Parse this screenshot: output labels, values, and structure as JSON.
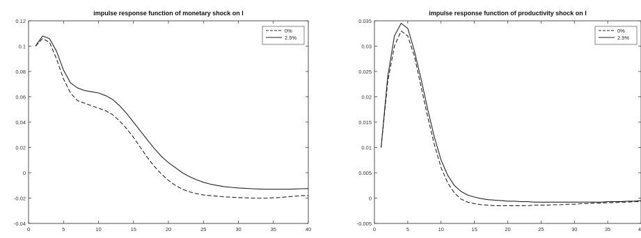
{
  "chart_data": [
    {
      "type": "line",
      "title": "impulse response function of monetary shock on I",
      "xlabel": "",
      "ylabel": "",
      "xlim": [
        0,
        40
      ],
      "ylim": [
        -0.04,
        0.12
      ],
      "xticks": [
        0,
        5,
        10,
        15,
        20,
        25,
        30,
        35,
        40
      ],
      "yticks": [
        -0.04,
        -0.02,
        0,
        0.02,
        0.04,
        0.06,
        0.08,
        0.1,
        0.12
      ],
      "xtick_labels": [
        "0",
        "5",
        "10",
        "15",
        "20",
        "25",
        "30",
        "35",
        "40"
      ],
      "ytick_labels": [
        "-0.04",
        "-0.02",
        "0",
        "0.02",
        "0.04",
        "0.06",
        "0.08",
        "0.1",
        "0.12"
      ],
      "legend": "top-right",
      "grid": false,
      "series": [
        {
          "name": "0%",
          "style": "dashed",
          "color": "#222222",
          "x": [
            1,
            2,
            3,
            4,
            5,
            6,
            7,
            8,
            9,
            10,
            11,
            12,
            13,
            14,
            15,
            16,
            17,
            18,
            19,
            20,
            21,
            22,
            23,
            24,
            25,
            26,
            27,
            28,
            29,
            30,
            31,
            32,
            33,
            34,
            35,
            36,
            37,
            38,
            39,
            40
          ],
          "values": [
            0.1,
            0.106,
            0.103,
            0.09,
            0.074,
            0.063,
            0.057,
            0.055,
            0.053,
            0.051,
            0.049,
            0.046,
            0.041,
            0.035,
            0.028,
            0.02,
            0.012,
            0.005,
            -0.001,
            -0.006,
            -0.01,
            -0.013,
            -0.015,
            -0.0165,
            -0.0175,
            -0.018,
            -0.0185,
            -0.019,
            -0.0193,
            -0.0196,
            -0.0198,
            -0.02,
            -0.02,
            -0.02,
            -0.0198,
            -0.0195,
            -0.019,
            -0.0185,
            -0.018,
            -0.018
          ]
        },
        {
          "name": "2.5%",
          "style": "solid",
          "color": "#222222",
          "x": [
            1,
            2,
            3,
            4,
            5,
            6,
            7,
            8,
            9,
            10,
            11,
            12,
            13,
            14,
            15,
            16,
            17,
            18,
            19,
            20,
            21,
            22,
            23,
            24,
            25,
            26,
            27,
            28,
            29,
            30,
            31,
            32,
            33,
            34,
            35,
            36,
            37,
            38,
            39,
            40
          ],
          "values": [
            0.1,
            0.108,
            0.106,
            0.096,
            0.081,
            0.071,
            0.067,
            0.065,
            0.064,
            0.063,
            0.061,
            0.058,
            0.053,
            0.047,
            0.04,
            0.033,
            0.026,
            0.019,
            0.013,
            0.008,
            0.004,
            0.0,
            -0.003,
            -0.0055,
            -0.0075,
            -0.009,
            -0.01,
            -0.011,
            -0.0115,
            -0.012,
            -0.0123,
            -0.0126,
            -0.0128,
            -0.013,
            -0.013,
            -0.013,
            -0.013,
            -0.0128,
            -0.0126,
            -0.0125
          ]
        }
      ]
    },
    {
      "type": "line",
      "title": "impulse response function of productivity shock on I",
      "xlabel": "",
      "ylabel": "",
      "xlim": [
        0,
        40
      ],
      "ylim": [
        -0.005,
        0.035
      ],
      "xticks": [
        0,
        5,
        10,
        15,
        20,
        25,
        30,
        35,
        40
      ],
      "yticks": [
        -0.005,
        0,
        0.005,
        0.01,
        0.015,
        0.02,
        0.025,
        0.03,
        0.035
      ],
      "xtick_labels": [
        "0",
        "5",
        "10",
        "15",
        "20",
        "25",
        "30",
        "35",
        "40"
      ],
      "ytick_labels": [
        "-0.005",
        "0",
        "0.005",
        "0.01",
        "0.015",
        "0.02",
        "0.025",
        "0.03",
        "0.035"
      ],
      "legend": "top-right",
      "grid": false,
      "series": [
        {
          "name": "0%",
          "style": "dashed",
          "color": "#222222",
          "x": [
            1,
            2,
            3,
            4,
            5,
            6,
            7,
            8,
            9,
            10,
            11,
            12,
            13,
            14,
            15,
            16,
            17,
            18,
            19,
            20,
            21,
            22,
            23,
            24,
            25,
            26,
            27,
            28,
            29,
            30,
            31,
            32,
            33,
            34,
            35,
            36,
            37,
            38,
            39,
            40
          ],
          "values": [
            0.01,
            0.023,
            0.03,
            0.033,
            0.032,
            0.028,
            0.022,
            0.016,
            0.0105,
            0.006,
            0.003,
            0.001,
            -0.0002,
            -0.0008,
            -0.0011,
            -0.0013,
            -0.0014,
            -0.0015,
            -0.0015,
            -0.0015,
            -0.0015,
            -0.0015,
            -0.0015,
            -0.0014,
            -0.0014,
            -0.0014,
            -0.0013,
            -0.0013,
            -0.0012,
            -0.0012,
            -0.0011,
            -0.0011,
            -0.001,
            -0.001,
            -0.0009,
            -0.0009,
            -0.0008,
            -0.0008,
            -0.0007,
            -0.0007
          ]
        },
        {
          "name": "2.5%",
          "style": "solid",
          "color": "#222222",
          "x": [
            1,
            2,
            3,
            4,
            5,
            6,
            7,
            8,
            9,
            10,
            11,
            12,
            13,
            14,
            15,
            16,
            17,
            18,
            19,
            20,
            21,
            22,
            23,
            24,
            25,
            26,
            27,
            28,
            29,
            30,
            31,
            32,
            33,
            34,
            35,
            36,
            37,
            38,
            39,
            40
          ],
          "values": [
            0.01,
            0.024,
            0.032,
            0.0345,
            0.0335,
            0.029,
            0.0235,
            0.0175,
            0.012,
            0.0075,
            0.0045,
            0.0025,
            0.0013,
            0.0006,
            0.0002,
            -0.0001,
            -0.0003,
            -0.0004,
            -0.0005,
            -0.0006,
            -0.0006,
            -0.0007,
            -0.0007,
            -0.0008,
            -0.0008,
            -0.0008,
            -0.0008,
            -0.0008,
            -0.0008,
            -0.0008,
            -0.0008,
            -0.0008,
            -0.0008,
            -0.0008,
            -0.0007,
            -0.0007,
            -0.0007,
            -0.0006,
            -0.0006,
            -0.0005
          ]
        }
      ]
    }
  ]
}
